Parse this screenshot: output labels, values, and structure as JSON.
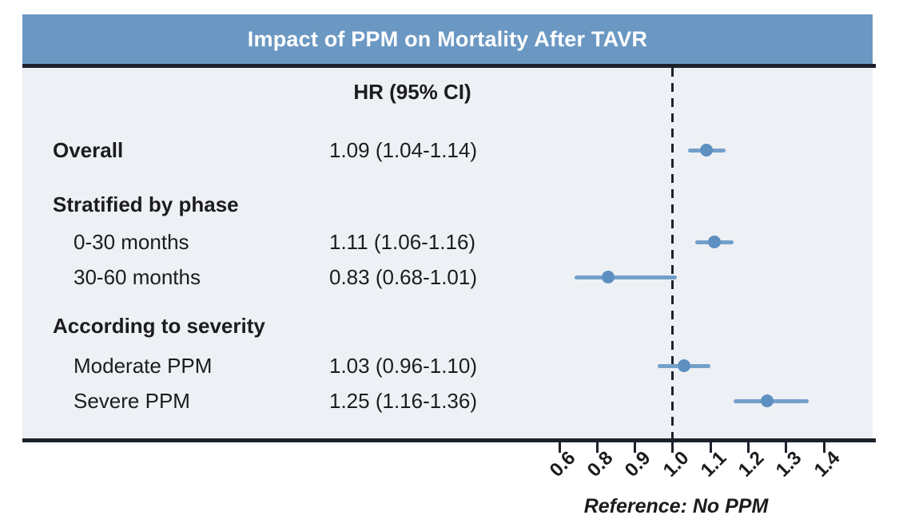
{
  "colors": {
    "title_bar": "#6b98c3",
    "panel_bg": "#edf0f5",
    "rule": "#1c222c",
    "ci_line": "#73a0cb",
    "point": "#5d8fc0",
    "text": "#1c1c1e"
  },
  "chart_data": {
    "type": "forest",
    "title": "Impact of PPM on Mortality After TAVR",
    "hr_column_header": "HR (95% CI)",
    "rows": [
      {
        "kind": "data",
        "indent": 0,
        "label": "Overall",
        "hr_text": "1.09 (1.04-1.14)",
        "hr": 1.09,
        "ci_low": 1.04,
        "ci_high": 1.14
      },
      {
        "kind": "header",
        "indent": 0,
        "label": "Stratified by phase"
      },
      {
        "kind": "data",
        "indent": 1,
        "label": "0-30 months",
        "hr_text": "1.11 (1.06-1.16)",
        "hr": 1.11,
        "ci_low": 1.06,
        "ci_high": 1.16
      },
      {
        "kind": "data",
        "indent": 1,
        "label": "30-60 months",
        "hr_text": "0.83 (0.68-1.01)",
        "hr": 0.83,
        "ci_low": 0.68,
        "ci_high": 1.01
      },
      {
        "kind": "header",
        "indent": 0,
        "label": "According to severity"
      },
      {
        "kind": "data",
        "indent": 1,
        "label": "Moderate PPM",
        "hr_text": "1.03 (0.96-1.10)",
        "hr": 1.03,
        "ci_low": 0.96,
        "ci_high": 1.1
      },
      {
        "kind": "data",
        "indent": 1,
        "label": "Severe PPM",
        "hr_text": "1.25 (1.16-1.36)",
        "hr": 1.25,
        "ci_low": 1.16,
        "ci_high": 1.36
      }
    ],
    "x_axis": {
      "tick_labels": [
        "0.6",
        "0.8",
        "0.9",
        "1.0",
        "1.1",
        "1.2",
        "1.3",
        "1.4"
      ],
      "tick_values": [
        0.6,
        0.8,
        0.9,
        1.0,
        1.1,
        1.2,
        1.3,
        1.4
      ],
      "tick_spacing": "equal",
      "reference_value": 1.0
    },
    "footnote": "Reference: No PPM"
  }
}
